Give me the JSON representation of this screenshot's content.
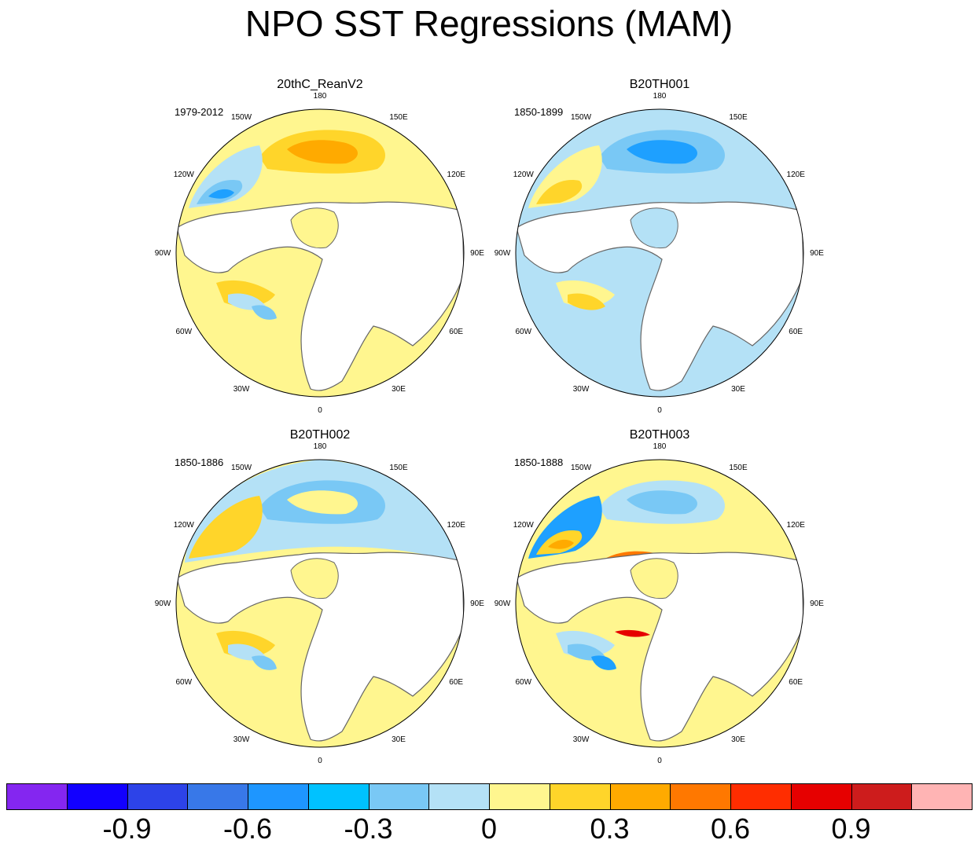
{
  "title": "NPO SST Regressions (MAM)",
  "colors": {
    "land": "#ffffff",
    "coast": "#666666",
    "border": "#000000"
  },
  "longitude_labels": {
    "top": "180",
    "upper_left": "150W",
    "upper_right": "150E",
    "left_upper": "120W",
    "right_upper": "120E",
    "left": "90W",
    "right": "90E",
    "left_lower": "60W",
    "right_lower": "60E",
    "lower_left": "30W",
    "lower_right": "30E",
    "bottom": "0"
  },
  "panels": [
    {
      "title": "20thC_ReanV2",
      "years": "1979-2012",
      "pacific": [
        {
          "color": "#fff68f",
          "level": 0.08
        },
        {
          "color": "#ffd52a",
          "level": 0.2
        },
        {
          "color": "#ffaa00",
          "level": 0.35
        },
        {
          "color": "#b4e1f6",
          "level": -0.06
        },
        {
          "color": "#79c8f5",
          "level": -0.22
        },
        {
          "color": "#1ea0ff",
          "level": -0.4
        }
      ],
      "atlantic": [
        {
          "color": "#fff68f",
          "level": 0.08
        },
        {
          "color": "#ffd52a",
          "level": 0.2
        },
        {
          "color": "#b4e1f6",
          "level": -0.06
        },
        {
          "color": "#79c8f5",
          "level": -0.22
        }
      ]
    },
    {
      "title": "B20TH001",
      "years": "1850-1899",
      "pacific": [
        {
          "color": "#b4e1f6",
          "level": -0.08
        },
        {
          "color": "#79c8f5",
          "level": -0.25
        },
        {
          "color": "#1ea0ff",
          "level": -0.4
        },
        {
          "color": "#fff68f",
          "level": 0.08
        },
        {
          "color": "#ffd52a",
          "level": 0.2
        }
      ],
      "atlantic": [
        {
          "color": "#b4e1f6",
          "level": -0.08
        },
        {
          "color": "#fff68f",
          "level": 0.08
        },
        {
          "color": "#ffd52a",
          "level": 0.2
        }
      ]
    },
    {
      "title": "B20TH002",
      "years": "1850-1886",
      "pacific": [
        {
          "color": "#b4e1f6",
          "level": -0.08
        },
        {
          "color": "#79c8f5",
          "level": -0.2
        },
        {
          "color": "#fff68f",
          "level": 0.08
        },
        {
          "color": "#ffd52a",
          "level": 0.2
        }
      ],
      "atlantic": [
        {
          "color": "#fff68f",
          "level": 0.08
        },
        {
          "color": "#ffd52a",
          "level": 0.2
        },
        {
          "color": "#b4e1f6",
          "level": -0.08
        },
        {
          "color": "#79c8f5",
          "level": -0.2
        }
      ]
    },
    {
      "title": "B20TH003",
      "years": "1850-1888",
      "pacific": [
        {
          "color": "#fff68f",
          "level": 0.08
        },
        {
          "color": "#b4e1f6",
          "level": -0.1
        },
        {
          "color": "#79c8f5",
          "level": -0.25
        },
        {
          "color": "#1ea0ff",
          "level": -0.45
        },
        {
          "color": "#ffd52a",
          "level": 0.2
        },
        {
          "color": "#ffaa00",
          "level": 0.35
        },
        {
          "color": "#ff7800",
          "level": 0.5
        },
        {
          "color": "#e60000",
          "level": 0.8
        }
      ],
      "atlantic": [
        {
          "color": "#fff68f",
          "level": 0.08
        },
        {
          "color": "#b4e1f6",
          "level": -0.1
        },
        {
          "color": "#79c8f5",
          "level": -0.25
        },
        {
          "color": "#1ea0ff",
          "level": -0.45
        },
        {
          "color": "#e60000",
          "level": 0.8
        }
      ]
    }
  ],
  "colorbar": {
    "colors": [
      "#8426f0",
      "#1200ff",
      "#2d43e8",
      "#3878e8",
      "#1e96ff",
      "#00c2ff",
      "#79c8f5",
      "#b4e1f6",
      "#fff68f",
      "#ffd52a",
      "#ffaa00",
      "#ff7800",
      "#ff2d00",
      "#e60000",
      "#cd1c1c",
      "#ffb4b4"
    ],
    "labels": [
      "-0.9",
      "-0.6",
      "-0.3",
      "0",
      "0.3",
      "0.6",
      "0.9"
    ]
  }
}
